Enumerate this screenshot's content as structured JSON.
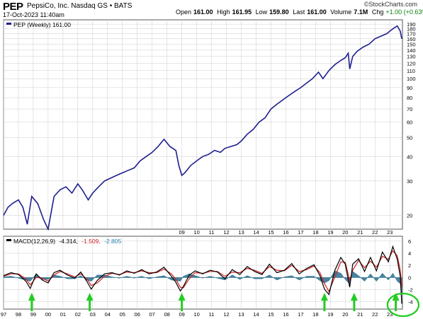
{
  "header": {
    "symbol": "PEP",
    "company": "PepsiCo, Inc.  Nasdaq GS • BATS",
    "datetime": "17-Oct-2023 11:40am",
    "brand": "©StockCharts.com",
    "quote": {
      "open_label": "Open",
      "open": "161.00",
      "high_label": "High",
      "high": "161.95",
      "low_label": "Low",
      "low": "159.80",
      "last_label": "Last",
      "last": "161.00",
      "volume_label": "Volume",
      "volume": "7.1M",
      "chg_label": "Chg",
      "chg": "+1.00 (+0.63%)"
    }
  },
  "colors": {
    "price_line": "#1f1f8f",
    "macd_line": "#000000",
    "signal_line": "#cc2222",
    "histogram": "#2b6f8f",
    "arrows": "#22cc22",
    "circle": "#22cc22",
    "grid": "#cccccc",
    "legend_negative": "#cc2222",
    "legend_histogram": "#2b80b0"
  },
  "chart_data": [
    {
      "type": "line",
      "legend": "PEP (Weekly) 161.00",
      "scale": "log",
      "ylim": [
        17,
        200
      ],
      "yticks": [
        20,
        30,
        40,
        50,
        60,
        70,
        80,
        90,
        100,
        110,
        120,
        130,
        140,
        150,
        160,
        170,
        180,
        190
      ],
      "xlim": [
        1997,
        2023.85
      ],
      "series": [
        {
          "name": "PEP",
          "x": [
            1997.0,
            1997.3,
            1997.6,
            1998.0,
            1998.3,
            1998.6,
            1998.9,
            1999.3,
            1999.7,
            2000.0,
            2000.4,
            2000.8,
            2001.2,
            2001.6,
            2002.0,
            2002.3,
            2002.7,
            2003.0,
            2003.4,
            2003.8,
            2004.2,
            2004.6,
            2005.0,
            2005.4,
            2005.8,
            2006.2,
            2006.6,
            2007.0,
            2007.4,
            2007.8,
            2008.2,
            2008.6,
            2008.8,
            2009.0,
            2009.2,
            2009.6,
            2010.0,
            2010.4,
            2010.8,
            2011.2,
            2011.6,
            2011.9,
            2012.3,
            2012.7,
            2013.0,
            2013.4,
            2013.8,
            2014.2,
            2014.6,
            2015.0,
            2015.4,
            2015.8,
            2016.2,
            2016.6,
            2017.0,
            2017.4,
            2017.8,
            2018.2,
            2018.5,
            2018.9,
            2019.3,
            2019.7,
            2020.0,
            2020.2,
            2020.3,
            2020.5,
            2020.8,
            2021.2,
            2021.6,
            2022.0,
            2022.4,
            2022.8,
            2023.0,
            2023.3,
            2023.5,
            2023.7,
            2023.8
          ],
          "values": [
            20,
            22,
            23,
            24,
            22,
            18,
            25,
            23,
            19,
            17,
            25,
            27,
            28,
            26,
            29,
            27,
            24,
            26,
            28,
            30,
            31,
            32,
            33,
            34,
            35,
            38,
            40,
            42,
            45,
            49,
            45,
            43,
            36,
            32,
            33,
            36,
            38,
            40,
            41,
            43,
            42,
            44,
            45,
            46,
            48,
            52,
            55,
            60,
            63,
            70,
            74,
            78,
            82,
            86,
            90,
            95,
            100,
            108,
            100,
            110,
            118,
            124,
            128,
            135,
            112,
            130,
            138,
            145,
            150,
            160,
            165,
            170,
            175,
            182,
            186,
            175,
            160
          ]
        }
      ]
    },
    {
      "type": "line",
      "legend": {
        "name": "MACD(12,26,9)",
        "value1": "-4.314,",
        "value2": "-1.509,",
        "value3": "-2.805"
      },
      "ylim": [
        -5.2,
        6.8
      ],
      "yticks": [
        -4,
        -2,
        0,
        2,
        4,
        6
      ],
      "xlim": [
        1997,
        2023.85
      ],
      "x_tick_labels": [
        "97",
        "98",
        "99",
        "00",
        "01",
        "02",
        "03",
        "04",
        "05",
        "06",
        "07",
        "08",
        "09",
        "10",
        "11",
        "12",
        "13",
        "14",
        "15",
        "16",
        "17",
        "18",
        "19",
        "20",
        "21",
        "22",
        "23"
      ],
      "series": [
        {
          "name": "MACD",
          "x": [
            1997.0,
            1997.5,
            1998.0,
            1998.5,
            1998.8,
            1999.2,
            1999.6,
            2000.0,
            2000.4,
            2000.8,
            2001.3,
            2001.8,
            2002.2,
            2002.6,
            2002.9,
            2003.3,
            2003.8,
            2004.3,
            2004.8,
            2005.3,
            2005.8,
            2006.3,
            2006.8,
            2007.3,
            2007.8,
            2008.3,
            2008.6,
            2008.9,
            2009.1,
            2009.5,
            2009.9,
            2010.4,
            2010.9,
            2011.4,
            2011.9,
            2012.4,
            2012.9,
            2013.4,
            2013.9,
            2014.4,
            2014.9,
            2015.4,
            2015.9,
            2016.4,
            2016.9,
            2017.4,
            2017.9,
            2018.3,
            2018.6,
            2018.9,
            2019.3,
            2019.7,
            2020.0,
            2020.3,
            2020.5,
            2020.9,
            2021.3,
            2021.7,
            2022.1,
            2022.5,
            2022.9,
            2023.2,
            2023.5,
            2023.7,
            2023.8
          ],
          "values": [
            0.3,
            0.8,
            0.5,
            -0.6,
            -1.8,
            0.6,
            -0.4,
            -0.9,
            0.8,
            1.2,
            0.4,
            -0.1,
            0.9,
            -0.6,
            -1.9,
            -0.5,
            0.6,
            0.8,
            0.4,
            1.1,
            0.7,
            1.3,
            0.6,
            0.9,
            1.7,
            0.2,
            -0.8,
            -2.2,
            -1.5,
            0.4,
            1.1,
            0.6,
            1.2,
            0.9,
            -0.2,
            1.3,
            0.5,
            1.8,
            1.0,
            0.5,
            2.2,
            0.8,
            1.2,
            2.3,
            0.6,
            1.5,
            2.1,
            0.3,
            -1.9,
            -2.8,
            1.2,
            3.3,
            2.2,
            -1.6,
            2.2,
            3.1,
            1.0,
            3.3,
            1.1,
            4.2,
            2.6,
            5.1,
            3.0,
            0.2,
            -4.3
          ]
        },
        {
          "name": "Signal",
          "x": [
            1997.0,
            1997.5,
            1998.0,
            1998.5,
            1998.8,
            1999.2,
            1999.6,
            2000.0,
            2000.4,
            2000.8,
            2001.3,
            2001.8,
            2002.2,
            2002.6,
            2002.9,
            2003.3,
            2003.8,
            2004.3,
            2004.8,
            2005.3,
            2005.8,
            2006.3,
            2006.8,
            2007.3,
            2007.8,
            2008.3,
            2008.6,
            2008.9,
            2009.1,
            2009.5,
            2009.9,
            2010.4,
            2010.9,
            2011.4,
            2011.9,
            2012.4,
            2012.9,
            2013.4,
            2013.9,
            2014.4,
            2014.9,
            2015.4,
            2015.9,
            2016.4,
            2016.9,
            2017.4,
            2017.9,
            2018.3,
            2018.6,
            2018.9,
            2019.3,
            2019.7,
            2020.0,
            2020.3,
            2020.5,
            2020.9,
            2021.3,
            2021.7,
            2022.1,
            2022.5,
            2022.9,
            2023.2,
            2023.5,
            2023.7,
            2023.8
          ],
          "values": [
            0.2,
            0.6,
            0.6,
            -0.2,
            -1.2,
            0.0,
            -0.1,
            -0.6,
            0.4,
            1.0,
            0.6,
            0.1,
            0.6,
            -0.2,
            -1.3,
            -0.9,
            0.2,
            0.7,
            0.5,
            0.9,
            0.8,
            1.1,
            0.8,
            0.8,
            1.4,
            0.6,
            -0.3,
            -1.6,
            -1.7,
            -0.2,
            0.8,
            0.7,
            1.0,
            1.0,
            0.2,
            0.9,
            0.8,
            1.5,
            1.2,
            0.7,
            1.8,
            1.2,
            1.1,
            2.0,
            1.0,
            1.3,
            1.9,
            0.8,
            -1.0,
            -2.3,
            0.1,
            2.6,
            2.5,
            -0.5,
            1.2,
            2.8,
            1.6,
            2.7,
            1.7,
            3.5,
            3.0,
            4.4,
            3.6,
            1.2,
            -1.5
          ]
        },
        {
          "name": "Histogram",
          "x": [
            1997.0,
            1997.5,
            1998.0,
            1998.5,
            1998.8,
            1999.2,
            1999.6,
            2000.0,
            2000.4,
            2000.8,
            2001.3,
            2001.8,
            2002.2,
            2002.6,
            2002.9,
            2003.3,
            2003.8,
            2004.3,
            2004.8,
            2005.3,
            2005.8,
            2006.3,
            2006.8,
            2007.3,
            2007.8,
            2008.3,
            2008.6,
            2008.9,
            2009.1,
            2009.5,
            2009.9,
            2010.4,
            2010.9,
            2011.4,
            2011.9,
            2012.4,
            2012.9,
            2013.4,
            2013.9,
            2014.4,
            2014.9,
            2015.4,
            2015.9,
            2016.4,
            2016.9,
            2017.4,
            2017.9,
            2018.3,
            2018.6,
            2018.9,
            2019.3,
            2019.7,
            2020.0,
            2020.3,
            2020.5,
            2020.9,
            2021.3,
            2021.7,
            2022.1,
            2022.5,
            2022.9,
            2023.2,
            2023.5,
            2023.7,
            2023.8
          ],
          "values": [
            0.1,
            0.2,
            -0.1,
            -0.4,
            -0.6,
            0.6,
            -0.3,
            -0.3,
            0.4,
            0.2,
            -0.2,
            -0.2,
            0.3,
            -0.4,
            -0.6,
            0.4,
            0.4,
            0.1,
            -0.1,
            0.2,
            -0.1,
            0.2,
            -0.2,
            0.1,
            0.3,
            -0.4,
            -0.5,
            -0.6,
            0.2,
            0.6,
            0.3,
            -0.1,
            0.2,
            -0.1,
            -0.4,
            0.4,
            -0.3,
            0.3,
            -0.2,
            -0.2,
            0.4,
            -0.4,
            0.1,
            0.3,
            -0.4,
            0.2,
            0.2,
            -0.5,
            -0.9,
            -0.5,
            1.1,
            0.7,
            -0.3,
            -1.1,
            1.0,
            0.3,
            -0.6,
            0.6,
            -0.6,
            0.7,
            -0.4,
            0.7,
            -0.6,
            -1.0,
            -2.8
          ]
        }
      ]
    }
  ],
  "annotations": {
    "arrow_x": [
      1998.9,
      2002.8,
      2009.0,
      2018.6,
      2020.6,
      2023.4
    ],
    "circle_x": 2023.7
  }
}
